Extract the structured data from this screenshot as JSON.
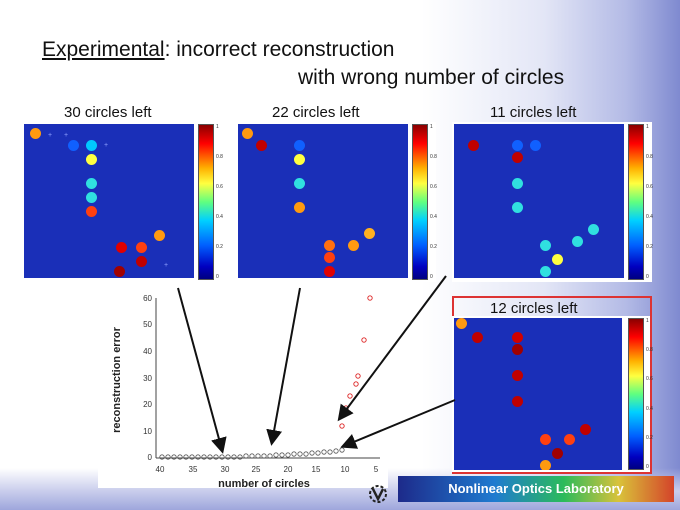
{
  "title": {
    "underlined": "Experimental",
    "line1_rest": ": incorrect reconstruction",
    "line2": "with wrong number of circles"
  },
  "panels": [
    {
      "caption": "30 circles left"
    },
    {
      "caption": "22 circles left"
    },
    {
      "caption": "11 circles left"
    },
    {
      "caption": "12 circles left"
    }
  ],
  "colorbar_ticks": [
    "1",
    "0.8",
    "0.6",
    "0.4",
    "0.2",
    "0"
  ],
  "plot": {
    "ylabel": "reconstruction error",
    "xlabel": "number of circles",
    "yticks": [
      "60",
      "50",
      "40",
      "30",
      "20",
      "10",
      "0"
    ],
    "xticks": [
      "40",
      "35",
      "30",
      "25",
      "20",
      "15",
      "10",
      "5"
    ]
  },
  "footer": {
    "lab": "Nonlinear Optics Laboratory"
  }
}
